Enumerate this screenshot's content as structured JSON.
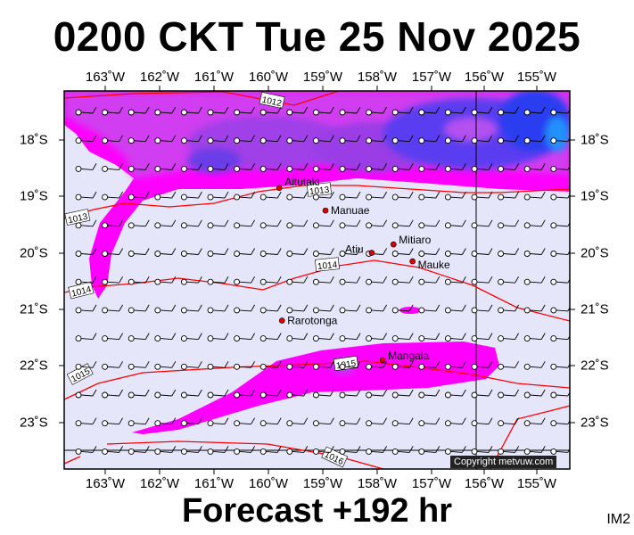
{
  "title": "0200 CKT Tue 25 Nov 2025",
  "footer": "Forecast +192 hr",
  "code": "IM2",
  "copyright": "Copyright metvuw.com",
  "colors": {
    "background": "#e6e6fb",
    "magenta": "#ff00ff",
    "violet": "#c03cf0",
    "purple": "#8a2be2",
    "blue": "#3c3cf0",
    "deep_blue": "#1e50ff",
    "isobar": "#ff0000",
    "island": "#e00000"
  },
  "lon_labels": [
    "163˚W",
    "162˚W",
    "161˚W",
    "160˚W",
    "159˚W",
    "158˚W",
    "157˚W",
    "156˚W",
    "155˚W"
  ],
  "lat_labels": [
    "18˚S",
    "19˚S",
    "20˚S",
    "21˚S",
    "22˚S",
    "23˚S"
  ],
  "places": [
    {
      "name": "Aitutaki",
      "lon": -159.8,
      "lat": -18.85
    },
    {
      "name": "Manuae",
      "lon": -158.95,
      "lat": -19.25
    },
    {
      "name": "Mitiaro",
      "lon": -157.7,
      "lat": -19.85
    },
    {
      "name": "Atiu",
      "lon": -158.1,
      "lat": -20.0
    },
    {
      "name": "Mauke",
      "lon": -157.35,
      "lat": -20.15
    },
    {
      "name": "Rarotonga",
      "lon": -159.75,
      "lat": -21.2
    },
    {
      "name": "Mangaia",
      "lon": -157.9,
      "lat": -21.9
    }
  ],
  "isobar_labels": [
    "1012",
    "1013",
    "1013",
    "1014",
    "1014",
    "1015",
    "1015",
    "1016"
  ]
}
